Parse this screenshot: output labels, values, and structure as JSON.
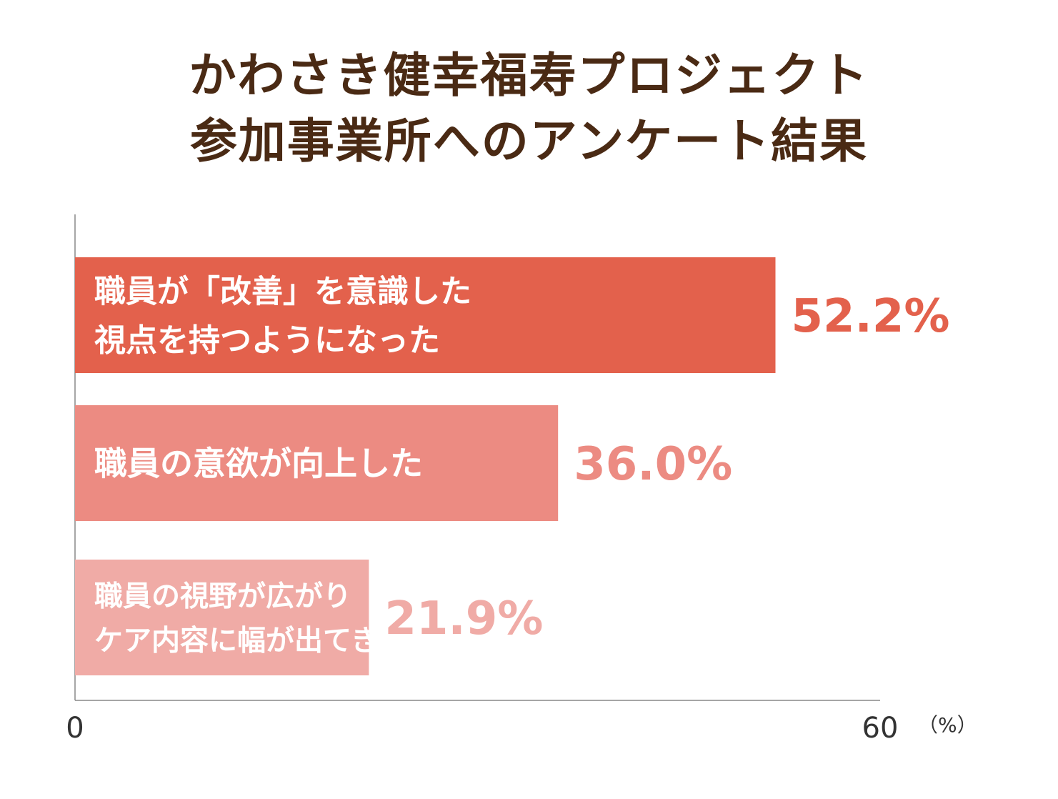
{
  "chart_data": {
    "type": "bar",
    "orientation": "horizontal",
    "title_lines": [
      "かわさき健幸福寿プロジェクト",
      "参加事業所へのアンケート結果"
    ],
    "categories": [
      [
        "職員が「改善」を意識した",
        "視点を持つようになった"
      ],
      [
        "職員の意欲が向上した"
      ],
      [
        "職員の視野が広がり",
        "ケア内容に幅が出てきた"
      ]
    ],
    "values": [
      52.2,
      36.0,
      21.9
    ],
    "value_labels": [
      "52.2%",
      "36.0%",
      "21.9%"
    ],
    "colors": [
      "#e3614c",
      "#ec8b82",
      "#f0aba6"
    ],
    "xlim": [
      0,
      60
    ],
    "tick_labels": [
      "0",
      "60"
    ],
    "unit_label": "（%）",
    "grid": false
  }
}
